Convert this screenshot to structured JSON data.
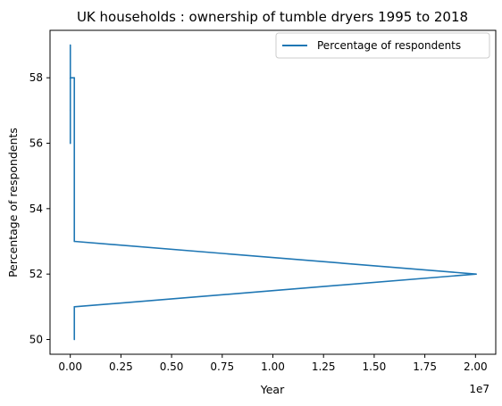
{
  "chart_data": {
    "type": "line",
    "title": "UK households : ownership of tumble dryers 1995 to 2018",
    "xlabel": "Year",
    "ylabel": "Percentage of respondents",
    "x_offset_label": "1e7",
    "xlim": [
      -1000000,
      21000000
    ],
    "ylim": [
      49.55,
      59.45
    ],
    "x_ticks": [
      0,
      2500000,
      5000000,
      7500000,
      10000000,
      12500000,
      15000000,
      17500000,
      20000000
    ],
    "x_tick_labels": [
      "0.00",
      "0.25",
      "0.50",
      "0.75",
      "1.00",
      "1.25",
      "1.50",
      "1.75",
      "2.00"
    ],
    "y_ticks": [
      50,
      52,
      54,
      56,
      58
    ],
    "y_tick_labels": [
      "50",
      "52",
      "54",
      "56",
      "58"
    ],
    "grid": false,
    "legend_position": "top-right",
    "series": [
      {
        "name": "Percentage of respondents",
        "color": "#1f77b4",
        "points": [
          {
            "x": 1995,
            "y": 56
          },
          {
            "x": 1996,
            "y": 58
          },
          {
            "x": 1997,
            "y": 57
          },
          {
            "x": 1998,
            "y": 59
          },
          {
            "x": 1999,
            "y": 58
          },
          {
            "x": 2000,
            "y": 56
          },
          {
            "x": 2001,
            "y": 58
          },
          {
            "x": 200102,
            "y": 58
          },
          {
            "x": 200203,
            "y": 53
          },
          {
            "x": 20032004,
            "y": 52
          },
          {
            "x": 200405,
            "y": 51
          },
          {
            "x": 200506,
            "y": 50
          }
        ]
      }
    ]
  }
}
